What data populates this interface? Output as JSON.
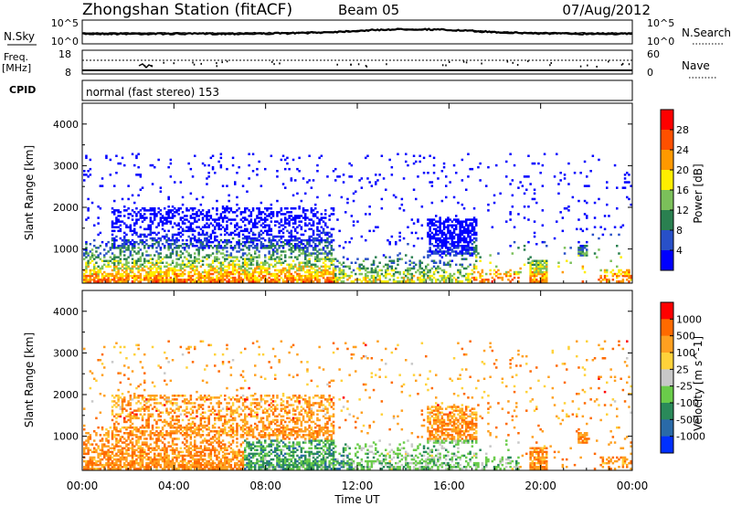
{
  "header": {
    "station": "Zhongshan Station (fitACF)",
    "beam": "Beam 05",
    "date": "07/Aug/2012",
    "cpid_label": "CPID",
    "mode": "normal (fast stereo) 153"
  },
  "strip_top": {
    "left_label": "N.Sky",
    "left_ticks": [
      "10^5",
      "10^0"
    ],
    "right_label": "N.Search",
    "right_ticks": [
      "10^5",
      "10^0"
    ]
  },
  "strip_freq": {
    "left_label_line1": "Freq.",
    "left_label_line2": "[MHz]",
    "left_ticks": [
      "18",
      "8"
    ],
    "right_label": "Nave",
    "right_ticks": [
      "60",
      "0"
    ]
  },
  "time_axis": {
    "label": "Time UT",
    "ticks": [
      "00:00",
      "04:00",
      "08:00",
      "12:00",
      "16:00",
      "20:00",
      "00:00"
    ]
  },
  "chart_data": [
    {
      "type": "heatmap",
      "name": "Power",
      "ylabel": "Slant Range [km]",
      "xlabel": "Time UT",
      "yticks": [
        "4000",
        "3000",
        "2000",
        "1000"
      ],
      "colorbar_label": "Power [dB]",
      "colorbar_ticks": [
        "28",
        "24",
        "20",
        "16",
        "12",
        "8",
        "4"
      ],
      "colors": [
        "#0000ff",
        "#2850c8",
        "#2a8050",
        "#7bc05a",
        "#ffee00",
        "#ff9900",
        "#ff5000",
        "#ff0000"
      ],
      "ylim": [
        180,
        4500
      ]
    },
    {
      "type": "heatmap",
      "name": "Velocity",
      "ylabel": "Slant Range [km]",
      "xlabel": "Time UT",
      "yticks": [
        "4000",
        "3000",
        "2000",
        "1000"
      ],
      "colorbar_label": "Velocity [m s^-1]",
      "colorbar_ticks": [
        "1000",
        "500",
        "100",
        "25",
        "-25",
        "-100",
        "-500",
        "-1000"
      ],
      "colors": [
        "#0030ff",
        "#2a6aa8",
        "#2a8a5a",
        "#6acc4a",
        "#c8c8c8",
        "#ffd23a",
        "#ffa020",
        "#ff6a00",
        "#ff0000"
      ],
      "ylim": [
        180,
        4500
      ]
    }
  ]
}
